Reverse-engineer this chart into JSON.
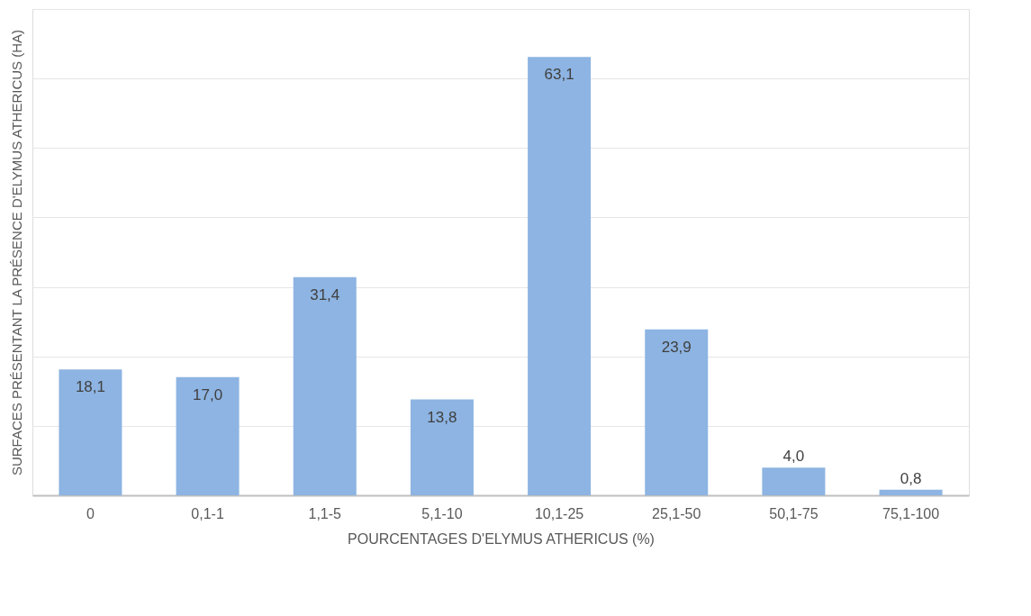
{
  "chart_data": {
    "type": "bar",
    "xlabel": "POURCENTAGES D'ELYMUS ATHERICUS (%)",
    "ylabel": "SURFACES PRÉSENTANT LA PRÉSENCE D'ELYMUS ATHERICUS (HA)",
    "categories": [
      "0",
      "0,1-1",
      "1,1-5",
      "5,1-10",
      "10,1-25",
      "25,1-50",
      "50,1-75",
      "75,1-100"
    ],
    "values": [
      18.1,
      17.0,
      31.4,
      13.8,
      63.1,
      23.9,
      4.0,
      0.8
    ],
    "value_labels": [
      "18,1",
      "17,0",
      "31,4",
      "13,8",
      "63,1",
      "23,9",
      "4,0",
      "0,8"
    ],
    "color": "#8db4e2",
    "ylim": [
      0,
      70
    ],
    "yticks": [
      {
        "value": 0,
        "label": null
      },
      {
        "value": 10,
        "label": null
      },
      {
        "value": 20,
        "label": null
      },
      {
        "value": 30,
        "label": null
      },
      {
        "value": 40,
        "label": null
      },
      {
        "value": 50,
        "label": null
      },
      {
        "value": 60,
        "label": null
      },
      {
        "value": 70,
        "label": null
      }
    ],
    "grid": "y",
    "tick_labels": "x"
  }
}
